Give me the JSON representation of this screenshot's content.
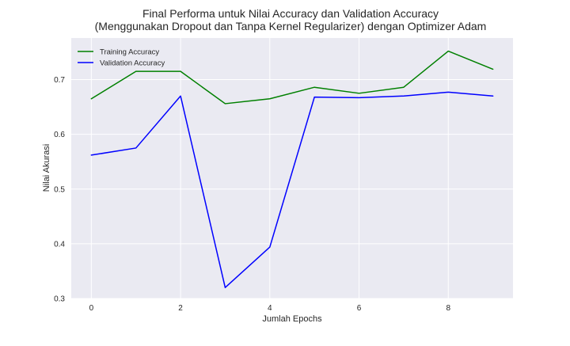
{
  "chart_data": {
    "type": "line",
    "title_lines": [
      "Final Performa untuk Nilai Accuracy dan Validation Accuracy",
      "(Menggunakan Dropout dan Tanpa Kernel Regularizer) dengan Optimizer Adam"
    ],
    "xlabel": "Jumlah Epochs",
    "ylabel": "Nilai Akurasi",
    "x": [
      0,
      1,
      2,
      3,
      4,
      5,
      6,
      7,
      8,
      9
    ],
    "xticks": [
      0,
      2,
      4,
      6,
      8
    ],
    "yticks": [
      0.3,
      0.4,
      0.5,
      0.6,
      0.7
    ],
    "xlim": [
      -0.45,
      9.45
    ],
    "ylim": [
      0.3,
      0.776
    ],
    "grid": true,
    "legend_position": "upper-left",
    "background_color": "#eaeaf2",
    "series": [
      {
        "name": "Training Accuracy",
        "color": "#008000",
        "values": [
          0.665,
          0.715,
          0.715,
          0.656,
          0.665,
          0.686,
          0.675,
          0.686,
          0.752,
          0.719
        ]
      },
      {
        "name": "Validation Accuracy",
        "color": "#0000ff",
        "values": [
          0.562,
          0.575,
          0.67,
          0.32,
          0.394,
          0.668,
          0.667,
          0.67,
          0.677,
          0.67
        ]
      }
    ]
  }
}
